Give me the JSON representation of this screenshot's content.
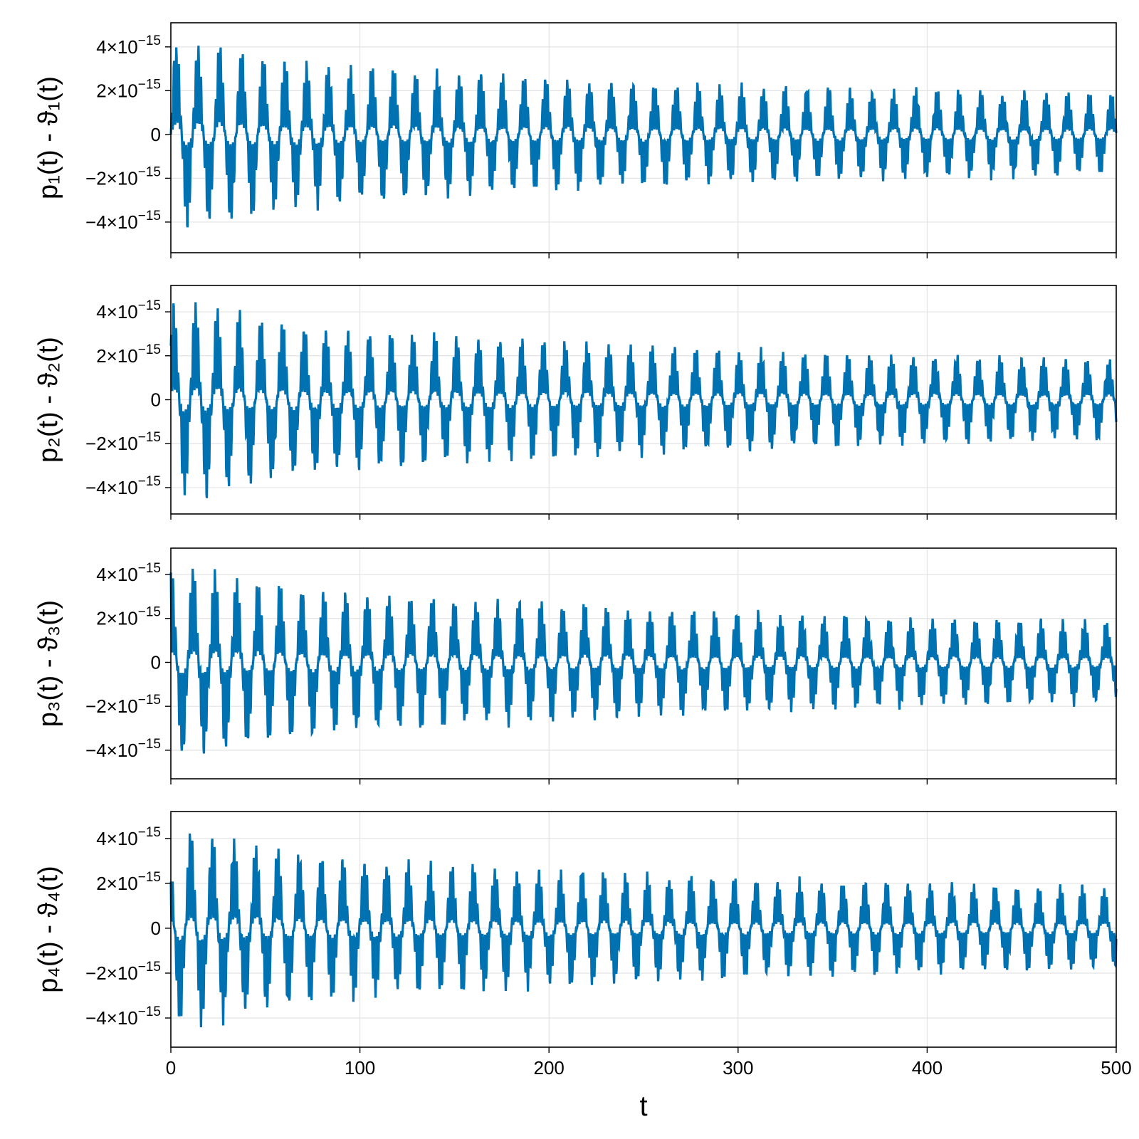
{
  "chart_data": [
    {
      "type": "line",
      "ylabel": "p₁(t) - ϑ₁(t)",
      "xlabel": "",
      "xlim": [
        0,
        500
      ],
      "ylim": [
        -5.4e-15,
        5.1e-15
      ],
      "yticks": [
        -4e-15,
        -2e-15,
        0,
        2e-15,
        4e-15
      ],
      "ytick_labels": [
        "−4×10−15",
        "−2×10−15",
        "0",
        "2×10−15",
        "4×10−15"
      ],
      "xticks": [
        0,
        100,
        200,
        300,
        400,
        500
      ],
      "xtick_labels": [],
      "grid": true,
      "color": "#0072b2",
      "series": [
        {
          "x": [
            0,
            10,
            20,
            30,
            40,
            50,
            60,
            70,
            80,
            90,
            100,
            120,
            140,
            160,
            180,
            200,
            250,
            300,
            350,
            400,
            450,
            500
          ],
          "envelope": [
            4.5e-15,
            4.6e-15,
            4.3e-15,
            4.6e-15,
            4.1e-15,
            3.8e-15,
            3.7e-15,
            3.6e-15,
            3.5e-15,
            3.4e-15,
            3.3e-15,
            3.2e-15,
            3.1e-15,
            3e-15,
            2.9e-15,
            2.8e-15,
            2.6e-15,
            2.4e-15,
            2.3e-15,
            2.2e-15,
            2.1e-15,
            2e-15
          ],
          "period": 11.5
        }
      ]
    },
    {
      "type": "line",
      "ylabel": "p₂(t) - ϑ₂(t)",
      "xlabel": "",
      "xlim": [
        0,
        500
      ],
      "ylim": [
        -5.2e-15,
        5.2e-15
      ],
      "yticks": [
        -4e-15,
        -2e-15,
        0,
        2e-15,
        4e-15
      ],
      "ytick_labels": [
        "−4×10−15",
        "−2×10−15",
        "0",
        "2×10−15",
        "4×10−15"
      ],
      "xticks": [
        0,
        100,
        200,
        300,
        400,
        500
      ],
      "xtick_labels": [],
      "grid": true,
      "color": "#0072b2",
      "series": [
        {
          "x": [
            0,
            10,
            20,
            30,
            40,
            50,
            60,
            70,
            80,
            90,
            100,
            120,
            140,
            160,
            180,
            200,
            250,
            300,
            350,
            400,
            450,
            500
          ],
          "envelope": [
            4.6e-15,
            4.8e-15,
            4.7e-15,
            4.3e-15,
            4.2e-15,
            4e-15,
            3.9e-15,
            3.7e-15,
            3.6e-15,
            3.5e-15,
            3.4e-15,
            3.3e-15,
            3.2e-15,
            3.1e-15,
            3e-15,
            2.9e-15,
            2.7e-15,
            2.5e-15,
            2.3e-15,
            2.2e-15,
            2.1e-15,
            2e-15
          ],
          "period": 11.5
        }
      ]
    },
    {
      "type": "line",
      "ylabel": "p₃(t) - ϑ₃(t)",
      "xlabel": "",
      "xlim": [
        0,
        500
      ],
      "ylim": [
        -5.3e-15,
        5.2e-15
      ],
      "yticks": [
        -4e-15,
        -2e-15,
        0,
        2e-15,
        4e-15
      ],
      "ytick_labels": [
        "−4×10−15",
        "−2×10−15",
        "0",
        "2×10−15",
        "4×10−15"
      ],
      "xticks": [
        0,
        100,
        200,
        300,
        400,
        500
      ],
      "xtick_labels": [],
      "grid": true,
      "color": "#0072b2",
      "series": [
        {
          "x": [
            0,
            10,
            20,
            30,
            40,
            50,
            60,
            70,
            80,
            90,
            100,
            120,
            140,
            160,
            180,
            200,
            250,
            300,
            350,
            400,
            450,
            500
          ],
          "envelope": [
            4.6e-15,
            4.7e-15,
            4.6e-15,
            4.3e-15,
            4.1e-15,
            3.9e-15,
            3.8e-15,
            3.7e-15,
            3.6e-15,
            3.5e-15,
            3.4e-15,
            3.3e-15,
            3.2e-15,
            3.1e-15,
            3e-15,
            2.9e-15,
            2.7e-15,
            2.5e-15,
            2.3e-15,
            2.2e-15,
            2.1e-15,
            2e-15
          ],
          "period": 11.5
        }
      ]
    },
    {
      "type": "line",
      "ylabel": "p₄(t) - ϑ₄(t)",
      "xlabel": "t",
      "xlim": [
        0,
        500
      ],
      "ylim": [
        -5.3e-15,
        5.2e-15
      ],
      "yticks": [
        -4e-15,
        -2e-15,
        0,
        2e-15,
        4e-15
      ],
      "ytick_labels": [
        "−4×10−15",
        "−2×10−15",
        "0",
        "2×10−15",
        "4×10−15"
      ],
      "xticks": [
        0,
        100,
        200,
        300,
        400,
        500
      ],
      "xtick_labels": [
        "0",
        "100",
        "200",
        "300",
        "400",
        "500"
      ],
      "grid": true,
      "color": "#0072b2",
      "series": [
        {
          "x": [
            0,
            10,
            20,
            30,
            40,
            50,
            60,
            70,
            80,
            90,
            100,
            120,
            140,
            160,
            180,
            200,
            250,
            300,
            350,
            400,
            450,
            500
          ],
          "envelope": [
            4.5e-15,
            4.7e-15,
            4.6e-15,
            4.3e-15,
            4.1e-15,
            3.9e-15,
            3.8e-15,
            3.6e-15,
            3.5e-15,
            3.4e-15,
            3.3e-15,
            3.2e-15,
            3.1e-15,
            3e-15,
            2.9e-15,
            2.8e-15,
            2.6e-15,
            2.4e-15,
            2.3e-15,
            2.2e-15,
            2.1e-15,
            2e-15
          ],
          "period": 11.5
        }
      ]
    }
  ]
}
